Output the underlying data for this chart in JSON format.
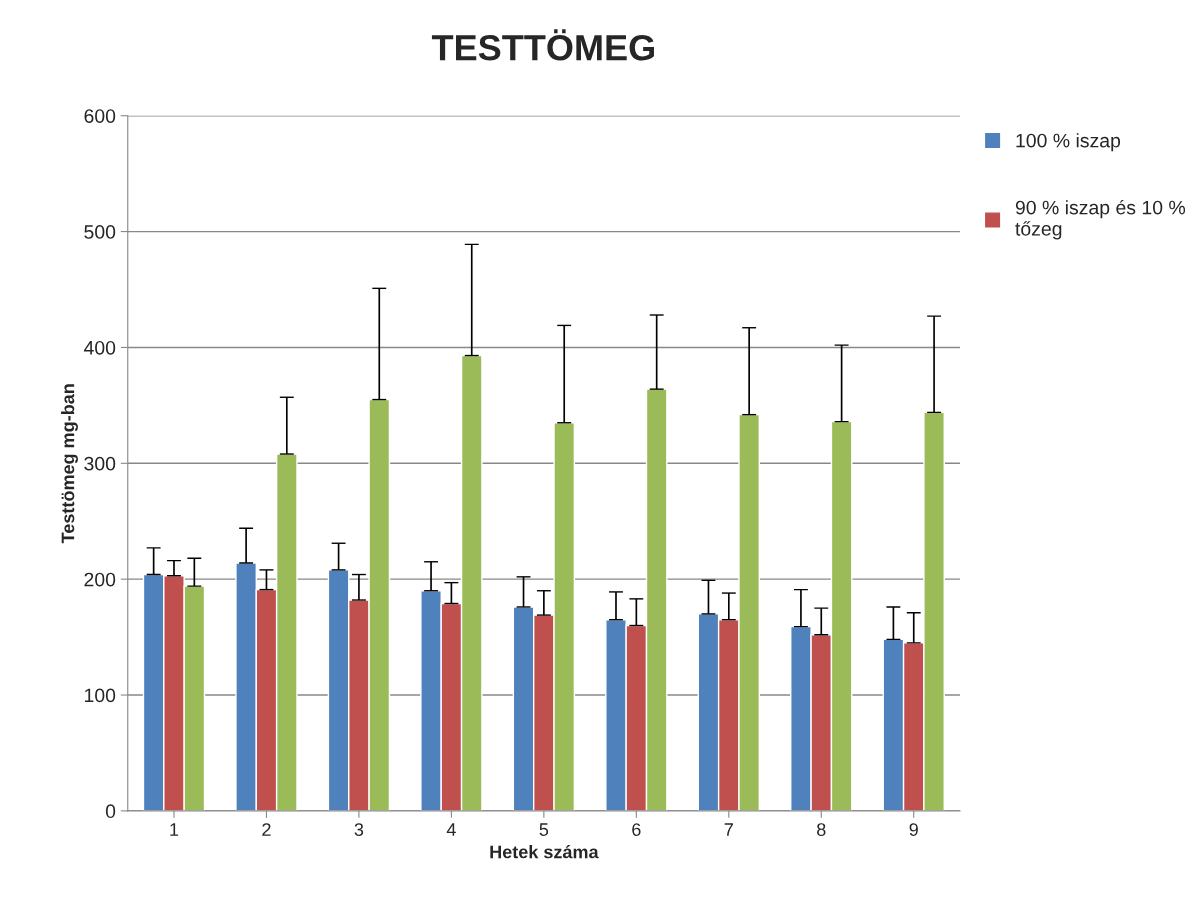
{
  "chart_data": {
    "type": "bar",
    "title": "TESTTÖMEG",
    "xlabel": "Hetek száma",
    "ylabel": "Testtömeg mg-ban",
    "categories": [
      "1",
      "2",
      "3",
      "4",
      "5",
      "6",
      "7",
      "8",
      "9"
    ],
    "series": [
      {
        "name": "100 % iszap",
        "color": "#4f81bd",
        "values": [
          204,
          214,
          208,
          190,
          176,
          165,
          170,
          159,
          148
        ],
        "errors": [
          [
            204,
            227
          ],
          [
            214,
            244
          ],
          [
            208,
            231
          ],
          [
            190,
            215
          ],
          [
            176,
            202
          ],
          [
            165,
            189
          ],
          [
            170,
            199
          ],
          [
            159,
            191
          ],
          [
            148,
            176
          ]
        ]
      },
      {
        "name": "90 % iszap és 10 % tőzeg",
        "color": "#c0504d",
        "values": [
          203,
          191,
          182,
          179,
          169,
          160,
          165,
          152,
          145
        ],
        "errors": [
          [
            203,
            216
          ],
          [
            191,
            208
          ],
          [
            182,
            204
          ],
          [
            179,
            197
          ],
          [
            169,
            190
          ],
          [
            160,
            183
          ],
          [
            165,
            188
          ],
          [
            152,
            175
          ],
          [
            145,
            171
          ]
        ]
      },
      {
        "color": "#9bbb59",
        "values": [
          194,
          308,
          355,
          393,
          335,
          364,
          342,
          336,
          344
        ],
        "errors": [
          [
            194,
            218
          ],
          [
            308,
            357
          ],
          [
            355,
            451
          ],
          [
            393,
            489
          ],
          [
            335,
            419
          ],
          [
            364,
            428
          ],
          [
            342,
            417
          ],
          [
            336,
            402
          ],
          [
            344,
            427
          ]
        ]
      }
    ],
    "ylim": [
      0,
      600
    ],
    "yticks": [
      0,
      100,
      200,
      300,
      400,
      500,
      600
    ],
    "grid": "y",
    "legend": "right"
  }
}
